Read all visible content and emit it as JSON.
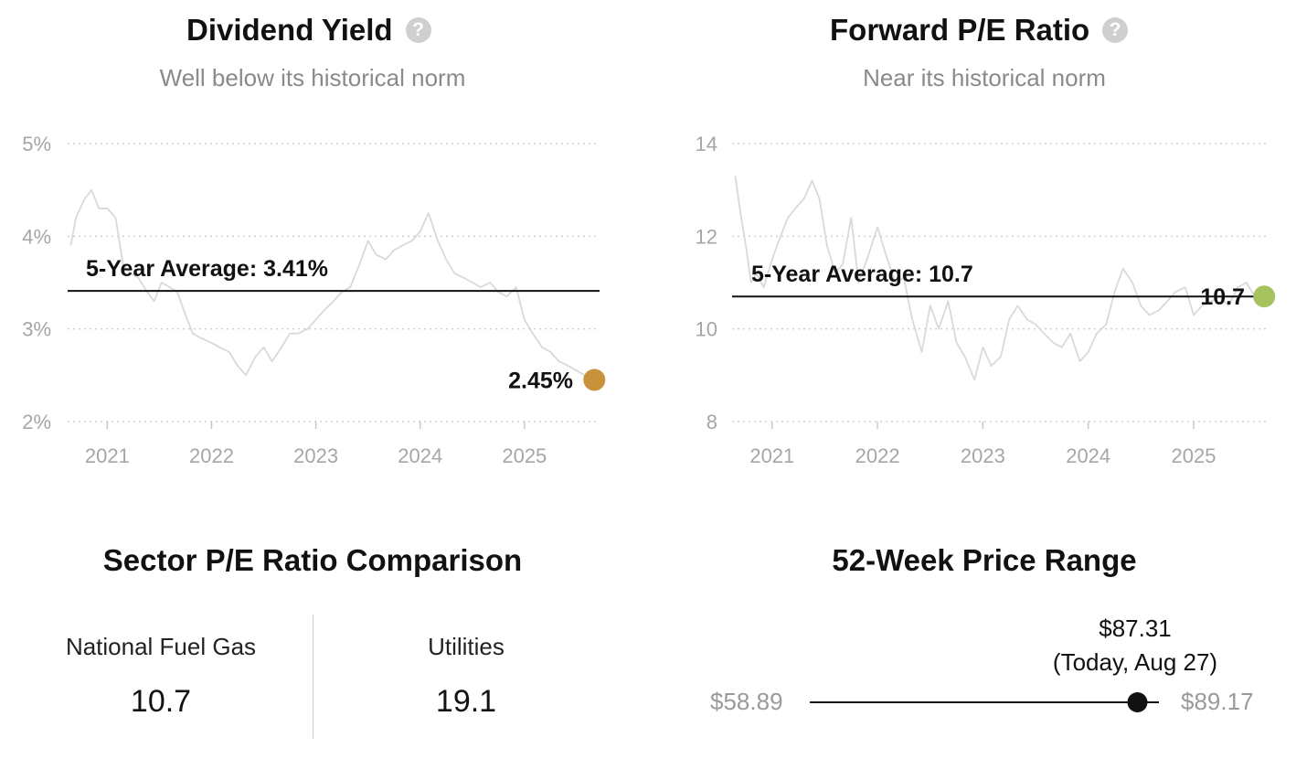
{
  "dividend": {
    "title": "Dividend Yield",
    "subtitle": "Well below its historical norm",
    "help_icon": "question-circle-icon",
    "help_glyph": "?",
    "avg_label": "5-Year Average: 3.41%",
    "current_label": "2.45%",
    "current_color": "#c9913a"
  },
  "pe": {
    "title": "Forward P/E Ratio",
    "subtitle": "Near its historical norm",
    "help_icon": "question-circle-icon",
    "help_glyph": "?",
    "avg_label": "5-Year Average: 10.7",
    "current_label": "10.7",
    "current_color": "#a7c35f"
  },
  "sector": {
    "title": "Sector P/E Ratio Comparison",
    "items": [
      {
        "label": "National Fuel Gas",
        "value": "10.7"
      },
      {
        "label": "Utilities",
        "value": "19.1"
      }
    ]
  },
  "range": {
    "title": "52-Week Price Range",
    "current_price": "$87.31",
    "current_note": "(Today, Aug 27)",
    "low": "$58.89",
    "high": "$89.17",
    "position": 0.9386
  },
  "chart_data": [
    {
      "type": "line",
      "title": "Dividend Yield",
      "subtitle": "Well below its historical norm",
      "ylabel": "",
      "xlabel": "",
      "ylim": [
        2,
        5
      ],
      "yticks": [
        "2%",
        "3%",
        "4%",
        "5%"
      ],
      "yticks_values": [
        2,
        3,
        4,
        5
      ],
      "xticks": [
        "2021",
        "2022",
        "2023",
        "2024",
        "2025"
      ],
      "xticks_values": [
        2021,
        2022,
        2023,
        2024,
        2025
      ],
      "xlim": [
        2020.62,
        2025.72
      ],
      "grid": true,
      "series": [
        {
          "name": "",
          "color": "#d9d9d9",
          "x": [
            2020.65,
            2020.7,
            2020.78,
            2020.85,
            2020.92,
            2021.0,
            2021.08,
            2021.15,
            2021.22,
            2021.3,
            2021.38,
            2021.45,
            2021.52,
            2021.6,
            2021.67,
            2021.75,
            2021.82,
            2021.9,
            2022.0,
            2022.08,
            2022.17,
            2022.25,
            2022.33,
            2022.42,
            2022.5,
            2022.58,
            2022.67,
            2022.75,
            2022.83,
            2022.92,
            2023.0,
            2023.08,
            2023.17,
            2023.25,
            2023.33,
            2023.42,
            2023.5,
            2023.58,
            2023.67,
            2023.75,
            2023.83,
            2023.92,
            2024.0,
            2024.08,
            2024.17,
            2024.25,
            2024.33,
            2024.42,
            2024.5,
            2024.58,
            2024.67,
            2024.75,
            2024.83,
            2024.92,
            2025.0,
            2025.08,
            2025.17,
            2025.25,
            2025.33,
            2025.42,
            2025.5,
            2025.58,
            2025.62
          ],
          "y": [
            3.9,
            4.2,
            4.4,
            4.5,
            4.3,
            4.3,
            4.2,
            3.7,
            3.6,
            3.55,
            3.4,
            3.3,
            3.5,
            3.45,
            3.4,
            3.15,
            2.95,
            2.9,
            2.85,
            2.8,
            2.75,
            2.6,
            2.5,
            2.7,
            2.8,
            2.65,
            2.8,
            2.95,
            2.95,
            3.0,
            3.1,
            3.2,
            3.3,
            3.4,
            3.45,
            3.7,
            3.95,
            3.8,
            3.75,
            3.85,
            3.9,
            3.95,
            4.05,
            4.25,
            3.95,
            3.75,
            3.6,
            3.55,
            3.5,
            3.45,
            3.5,
            3.4,
            3.35,
            3.45,
            3.1,
            2.95,
            2.8,
            2.75,
            2.65,
            2.6,
            2.55,
            2.5,
            2.48
          ]
        }
      ],
      "average": {
        "label": "5-Year Average: 3.41%",
        "value": 3.41
      },
      "current": {
        "label": "2.45%",
        "value": 2.45,
        "x": 2025.67
      }
    },
    {
      "type": "line",
      "title": "Forward P/E Ratio",
      "subtitle": "Near its historical norm",
      "ylabel": "",
      "xlabel": "",
      "ylim": [
        8,
        14
      ],
      "yticks": [
        "8",
        "10",
        "12",
        "14"
      ],
      "yticks_values": [
        8,
        10,
        12,
        14
      ],
      "xticks": [
        "2021",
        "2022",
        "2023",
        "2024",
        "2025"
      ],
      "xticks_values": [
        2021,
        2022,
        2023,
        2024,
        2025
      ],
      "xlim": [
        2020.62,
        2025.72
      ],
      "grid": true,
      "series": [
        {
          "name": "",
          "color": "#d9d9d9",
          "x": [
            2020.65,
            2020.7,
            2020.75,
            2020.8,
            2020.85,
            2020.92,
            2021.0,
            2021.08,
            2021.15,
            2021.22,
            2021.3,
            2021.38,
            2021.45,
            2021.52,
            2021.6,
            2021.67,
            2021.75,
            2021.82,
            2021.9,
            2022.0,
            2022.08,
            2022.17,
            2022.25,
            2022.33,
            2022.42,
            2022.5,
            2022.58,
            2022.67,
            2022.75,
            2022.83,
            2022.92,
            2023.0,
            2023.08,
            2023.17,
            2023.25,
            2023.33,
            2023.42,
            2023.5,
            2023.58,
            2023.67,
            2023.75,
            2023.83,
            2023.92,
            2024.0,
            2024.08,
            2024.17,
            2024.25,
            2024.33,
            2024.42,
            2024.5,
            2024.58,
            2024.67,
            2024.75,
            2024.83,
            2024.92,
            2025.0,
            2025.08,
            2025.17,
            2025.25,
            2025.33,
            2025.42,
            2025.5,
            2025.58,
            2025.62
          ],
          "y": [
            13.3,
            12.5,
            11.8,
            11.0,
            11.2,
            10.9,
            11.5,
            12.0,
            12.4,
            12.6,
            12.8,
            13.2,
            12.8,
            11.8,
            11.2,
            11.4,
            12.4,
            11.0,
            11.5,
            12.2,
            11.6,
            11.0,
            11.1,
            10.2,
            9.5,
            10.5,
            10.0,
            10.6,
            9.7,
            9.4,
            8.9,
            9.6,
            9.2,
            9.4,
            10.2,
            10.5,
            10.2,
            10.1,
            9.9,
            9.7,
            9.6,
            9.9,
            9.3,
            9.5,
            9.9,
            10.1,
            10.8,
            11.3,
            11.0,
            10.5,
            10.3,
            10.4,
            10.6,
            10.8,
            10.9,
            10.3,
            10.5,
            10.6,
            10.7,
            10.5,
            10.9,
            11.0,
            10.7,
            10.7
          ]
        }
      ],
      "average": {
        "label": "5-Year Average: 10.7",
        "value": 10.7
      },
      "current": {
        "label": "10.7",
        "value": 10.7,
        "x": 2025.67
      }
    }
  ]
}
